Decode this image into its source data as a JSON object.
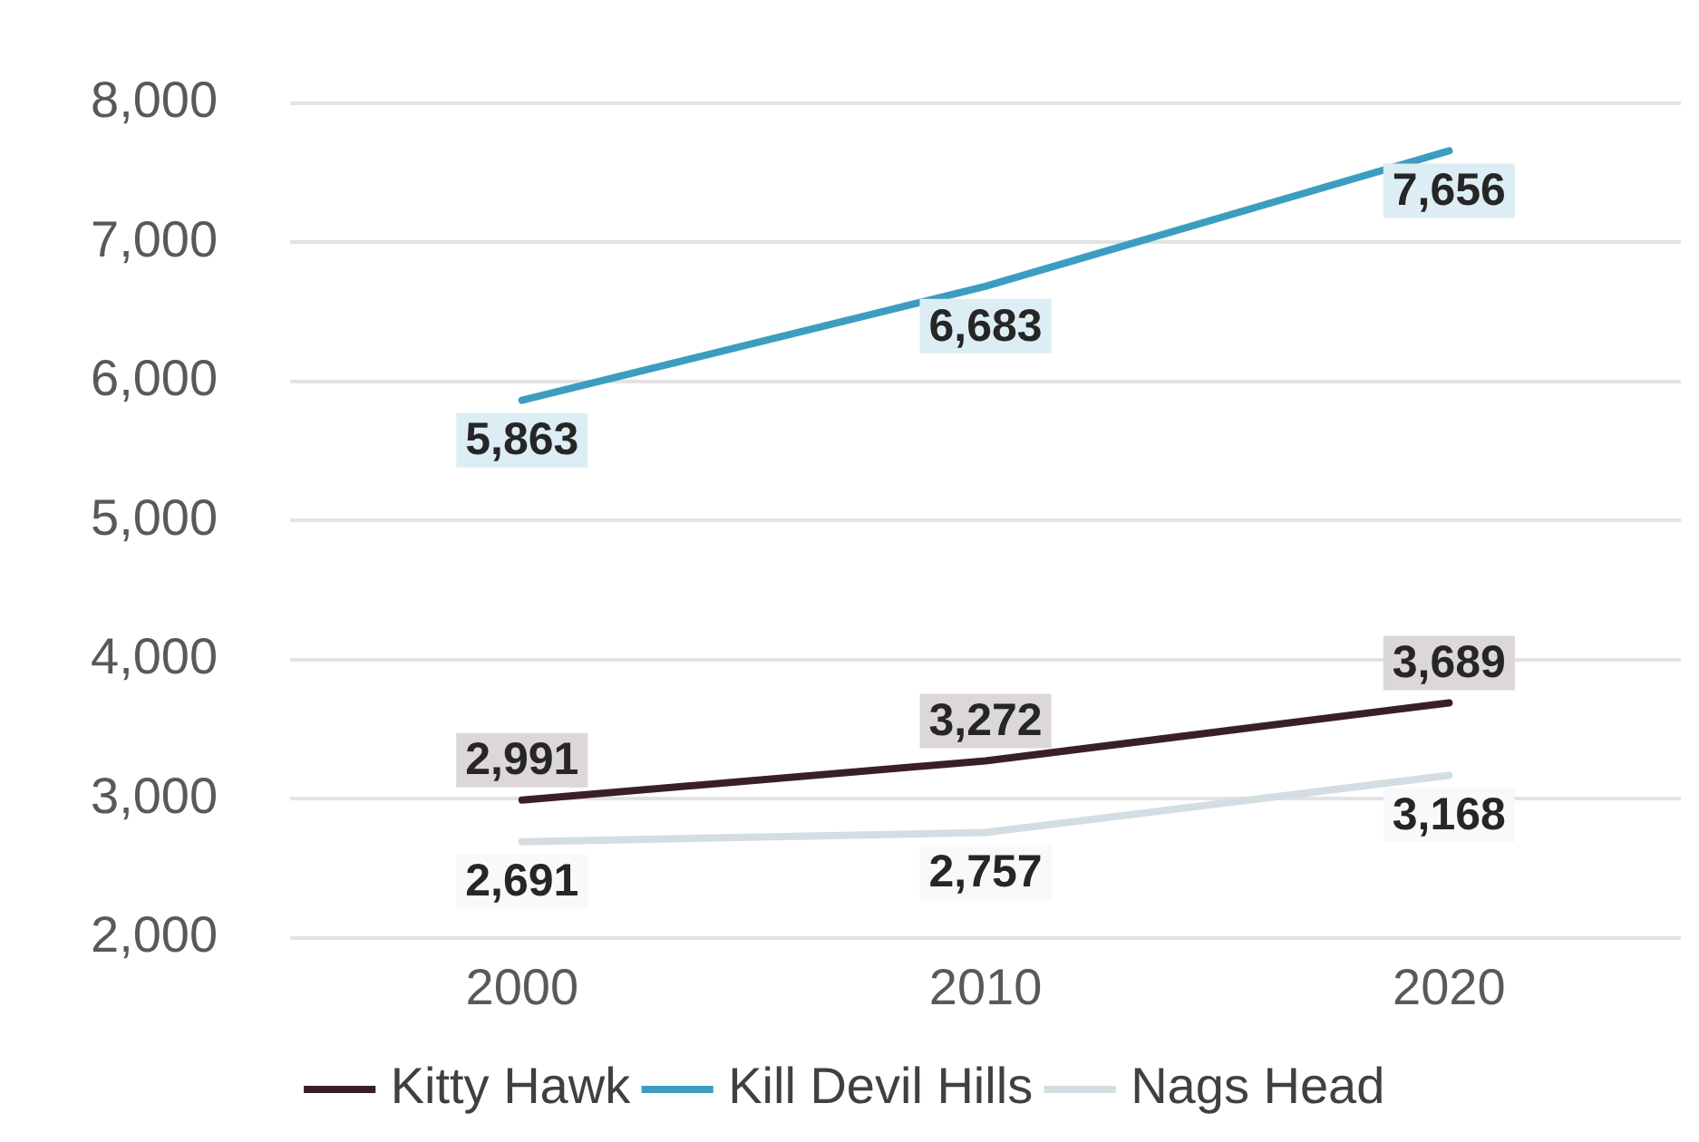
{
  "chart_data": {
    "type": "line",
    "categories": [
      "2000",
      "2010",
      "2020"
    ],
    "series": [
      {
        "name": "Kitty Hawk",
        "color": "#3b1e2c",
        "values": [
          2991,
          3272,
          3689
        ],
        "value_labels": [
          "2,991",
          "3,272",
          "3,689"
        ]
      },
      {
        "name": "Kill Devil Hills",
        "color": "#3d9dc1",
        "values": [
          5863,
          6683,
          7656
        ],
        "value_labels": [
          "5,863",
          "6,683",
          "7,656"
        ]
      },
      {
        "name": "Nags Head",
        "color": "#d3dde2",
        "values": [
          2691,
          2757,
          3168
        ],
        "value_labels": [
          "2,691",
          "2,757",
          "3,168"
        ]
      }
    ],
    "ylim": [
      2000,
      8000
    ],
    "yticks": [
      {
        "value": 2000,
        "label": "2,000"
      },
      {
        "value": 3000,
        "label": "3,000"
      },
      {
        "value": 4000,
        "label": "4,000"
      },
      {
        "value": 5000,
        "label": "5,000"
      },
      {
        "value": 6000,
        "label": "6,000"
      },
      {
        "value": 7000,
        "label": "7,000"
      },
      {
        "value": 8000,
        "label": "8,000"
      }
    ],
    "grid": "y",
    "legend": "bottom",
    "marker": "none",
    "line_style": "solid"
  }
}
